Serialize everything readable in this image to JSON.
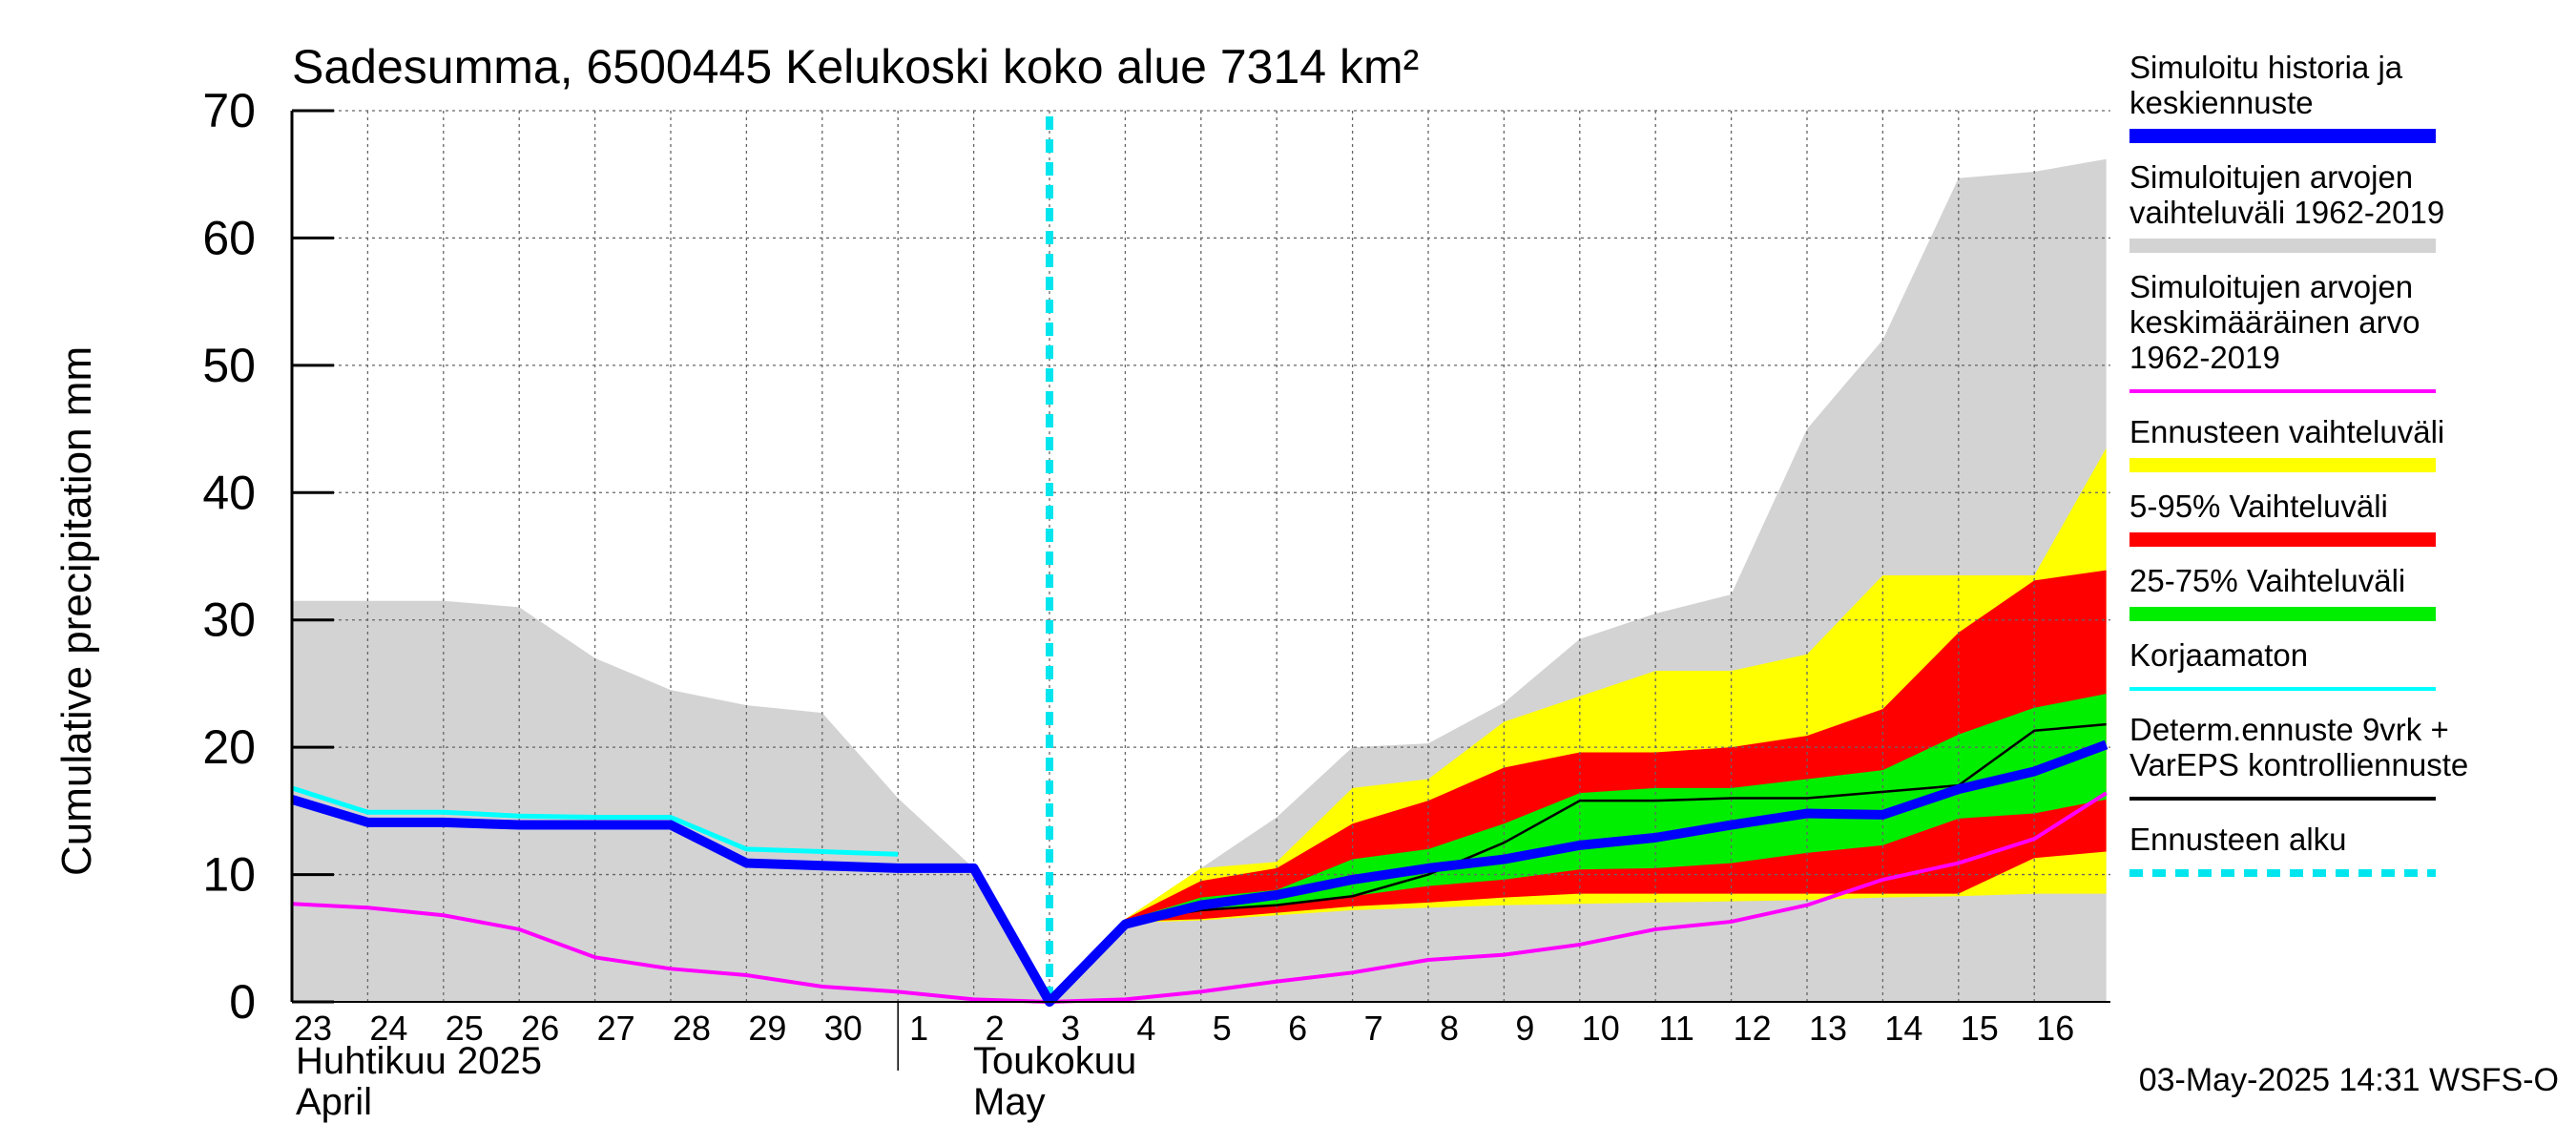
{
  "chart_data": {
    "type": "area",
    "title": "Sadesumma, 6500445 Kelukoski koko alue 7314 km²",
    "ylabel": "Cumulative precipitation   mm",
    "ylim": [
      0,
      70
    ],
    "yticks": [
      0,
      10,
      20,
      30,
      40,
      50,
      60,
      70
    ],
    "x_day_labels": [
      "23",
      "24",
      "25",
      "26",
      "27",
      "28",
      "29",
      "30",
      "1",
      "2",
      "3",
      "4",
      "5",
      "6",
      "7",
      "8",
      "9",
      "10",
      "11",
      "12",
      "13",
      "14",
      "15",
      "16"
    ],
    "month_labels": [
      {
        "fi": "Huhtikuu  2025",
        "en": "April"
      },
      {
        "fi": "Toukokuu",
        "en": "May"
      }
    ],
    "timestamp": "03-May-2025 14:31 WSFS-O",
    "grid": true,
    "legend_position": "right",
    "forecast_start_day": 10,
    "series": [
      {
        "name": "Simuloitujen arvojen vaihteluväli 1962-2019",
        "color": "#d3d3d3",
        "kind": "band",
        "x": [
          0,
          1,
          2,
          3,
          4,
          5,
          6,
          7,
          8,
          9,
          10,
          11,
          12,
          13,
          14,
          15,
          16,
          17,
          18,
          19,
          20,
          21,
          22,
          23,
          23.95
        ],
        "low": [
          0,
          0,
          0,
          0,
          0,
          0,
          0,
          0,
          0,
          0,
          0,
          0,
          0,
          0,
          0,
          0,
          0,
          0,
          0,
          0,
          0,
          0,
          0,
          0,
          0
        ],
        "high": [
          31.5,
          31.5,
          31.5,
          31,
          27,
          24.5,
          23.3,
          22.7,
          16,
          10.5,
          0,
          6.5,
          10.5,
          14.5,
          20,
          20.3,
          23.5,
          28.5,
          30.5,
          32,
          45,
          52,
          64.7,
          65.2,
          66.2
        ]
      },
      {
        "name": "Ennusteen vaihteluväli",
        "color": "#ffff00",
        "kind": "band",
        "x": [
          11,
          12,
          13,
          14,
          15,
          16,
          17,
          18,
          19,
          20,
          21,
          22,
          23,
          23.95
        ],
        "low": [
          6.2,
          6.4,
          6.8,
          7.2,
          7.4,
          7.6,
          7.7,
          7.8,
          7.9,
          8.0,
          8.2,
          8.3,
          8.5,
          8.5
        ],
        "high": [
          6.5,
          10.5,
          11,
          16.8,
          17.5,
          22,
          24,
          26,
          26,
          27.3,
          33.5,
          33.5,
          33.5,
          43.5
        ]
      },
      {
        "name": "5-95% Vaihteluväli",
        "color": "#ff0000",
        "kind": "band",
        "x": [
          11,
          12,
          13,
          14,
          15,
          16,
          17,
          18,
          19,
          20,
          21,
          22,
          23,
          23.95
        ],
        "low": [
          6.3,
          6.5,
          7,
          7.5,
          7.8,
          8.2,
          8.5,
          8.5,
          8.5,
          8.5,
          8.5,
          8.5,
          11.3,
          11.8
        ],
        "high": [
          6.5,
          9.5,
          10.5,
          14,
          15.8,
          18.4,
          19.6,
          19.6,
          20,
          20.9,
          23,
          29,
          33.1,
          33.9
        ]
      },
      {
        "name": "25-75% Vaihteluväli",
        "color": "#00ee00",
        "kind": "band",
        "x": [
          11,
          12,
          13,
          14,
          15,
          16,
          17,
          18,
          19,
          20,
          21,
          22,
          23,
          23.95
        ],
        "low": [
          6.3,
          7.2,
          7.6,
          8.3,
          9.1,
          9.6,
          10.4,
          10.5,
          10.9,
          11.7,
          12.3,
          14.4,
          14.8,
          15.9
        ],
        "high": [
          6.4,
          8.2,
          8.8,
          11.2,
          12,
          14,
          16.4,
          16.8,
          16.8,
          17.5,
          18.2,
          21,
          23.1,
          24.2
        ]
      },
      {
        "name": "Simuloitujen arvojen keskimääräinen arvo 1962-2019",
        "color": "#ff00ff",
        "kind": "line",
        "x": [
          0,
          1,
          2,
          3,
          4,
          5,
          6,
          7,
          8,
          9,
          10,
          11,
          12,
          13,
          14,
          15,
          16,
          17,
          18,
          19,
          20,
          21,
          22,
          23,
          23.95
        ],
        "values": [
          7.7,
          7.4,
          6.8,
          5.7,
          3.5,
          2.6,
          2.1,
          1.2,
          0.8,
          0.2,
          0,
          0.2,
          0.8,
          1.6,
          2.3,
          3.3,
          3.7,
          4.5,
          5.7,
          6.3,
          7.6,
          9.6,
          10.9,
          12.8,
          16.4
        ]
      },
      {
        "name": "Korjaamaton",
        "color": "#00ffff",
        "kind": "line",
        "x": [
          0,
          1,
          2,
          3,
          4,
          5,
          6,
          7,
          8
        ],
        "values": [
          16.8,
          14.9,
          14.9,
          14.6,
          14.5,
          14.5,
          12,
          11.8,
          11.6
        ]
      },
      {
        "name": "Determ.ennuste 9vrk + VarEPS kontrolliennuste",
        "color": "#000000",
        "kind": "line",
        "x": [
          11,
          12,
          13,
          14,
          15,
          16,
          17,
          18,
          19,
          20,
          21,
          22,
          23,
          23.95
        ],
        "values": [
          6.3,
          7.2,
          7.6,
          8.3,
          10,
          12.5,
          15.8,
          15.8,
          16,
          16,
          16.5,
          17,
          21.3,
          21.8
        ]
      },
      {
        "name": "Simuloitu historia ja keskiennuste",
        "color": "#0000ff",
        "kind": "line",
        "x": [
          0,
          1,
          2,
          3,
          4,
          5,
          6,
          7,
          8,
          9,
          10,
          11,
          12,
          13,
          14,
          15,
          16,
          17,
          18,
          19,
          20,
          21,
          22,
          23,
          23.95
        ],
        "values": [
          15.9,
          14.1,
          14.1,
          13.9,
          13.9,
          13.9,
          10.9,
          10.7,
          10.5,
          10.5,
          0,
          6.1,
          7.6,
          8.4,
          9.6,
          10.5,
          11.2,
          12.3,
          12.9,
          13.9,
          14.8,
          14.7,
          16.7,
          18.1,
          20.2
        ]
      }
    ],
    "legend": [
      {
        "lines": [
          "Simuloitu historia ja",
          "keskiennuste"
        ],
        "color": "#0000ff",
        "style": "thick"
      },
      {
        "lines": [
          "Simuloitujen arvojen",
          "vaihteluväli 1962-2019"
        ],
        "color": "#d3d3d3",
        "style": "thick"
      },
      {
        "lines": [
          "Simuloitujen arvojen",
          "keskimääräinen arvo",
          "   1962-2019"
        ],
        "color": "#ff00ff",
        "style": "thin"
      },
      {
        "lines": [
          "Ennusteen vaihteluväli"
        ],
        "color": "#ffff00",
        "style": "thick"
      },
      {
        "lines": [
          "5-95% Vaihteluväli"
        ],
        "color": "#ff0000",
        "style": "thick"
      },
      {
        "lines": [
          "25-75% Vaihteluväli"
        ],
        "color": "#00ee00",
        "style": "thick"
      },
      {
        "lines": [
          "Korjaamaton"
        ],
        "color": "#00ffff",
        "style": "thin"
      },
      {
        "lines": [
          "Determ.ennuste 9vrk +",
          "VarEPS kontrolliennuste"
        ],
        "color": "#000000",
        "style": "thin"
      },
      {
        "lines": [
          "Ennusteen alku"
        ],
        "color": "#00e5ee",
        "style": "dashed"
      }
    ]
  }
}
